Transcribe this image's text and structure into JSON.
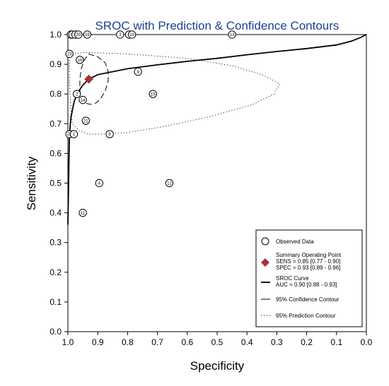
{
  "chart_data": {
    "type": "scatter",
    "title": "SROC with Prediction & Confidence Contours",
    "xlabel": "Specificity",
    "ylabel": "Sensitivity",
    "xlim": [
      1.0,
      0.0
    ],
    "ylim": [
      0.0,
      1.0
    ],
    "x_reversed": true,
    "grid": false,
    "x_ticks": [
      "1.0",
      "0.9",
      "0.8",
      "0.7",
      "0.6",
      "0.5",
      "0.4",
      "0.3",
      "0.2",
      "0.1",
      "0.0"
    ],
    "y_ticks": [
      "0.0",
      "0.1",
      "0.2",
      "0.3",
      "0.4",
      "0.5",
      "0.6",
      "0.7",
      "0.8",
      "0.9",
      "1.0"
    ],
    "studies": [
      {
        "label": "5",
        "specificity": 0.99,
        "sensitivity": 1.0
      },
      {
        "label": "6",
        "specificity": 0.985,
        "sensitivity": 1.0
      },
      {
        "label": "7",
        "specificity": 0.975,
        "sensitivity": 1.0
      },
      {
        "label": "20",
        "specificity": 0.965,
        "sensitivity": 1.0
      },
      {
        "label": "19",
        "specificity": 0.935,
        "sensitivity": 1.0
      },
      {
        "label": "3",
        "specificity": 0.825,
        "sensitivity": 1.0
      },
      {
        "label": "7",
        "specificity": 0.795,
        "sensitivity": 1.0
      },
      {
        "label": "10",
        "specificity": 0.785,
        "sensitivity": 1.0
      },
      {
        "label": "13",
        "specificity": 0.45,
        "sensitivity": 1.0
      },
      {
        "label": "23",
        "specificity": 0.995,
        "sensitivity": 0.935
      },
      {
        "label": "16",
        "specificity": 0.96,
        "sensitivity": 0.915
      },
      {
        "label": "9",
        "specificity": 0.765,
        "sensitivity": 0.875
      },
      {
        "label": "2",
        "specificity": 0.97,
        "sensitivity": 0.8
      },
      {
        "label": "15",
        "specificity": 0.715,
        "sensitivity": 0.8
      },
      {
        "label": "14",
        "specificity": 0.95,
        "sensitivity": 0.78
      },
      {
        "label": "21",
        "specificity": 0.94,
        "sensitivity": 0.71
      },
      {
        "label": "22",
        "specificity": 0.995,
        "sensitivity": 0.665
      },
      {
        "label": "1",
        "specificity": 0.98,
        "sensitivity": 0.665
      },
      {
        "label": "8",
        "specificity": 0.86,
        "sensitivity": 0.665
      },
      {
        "label": "4",
        "specificity": 0.895,
        "sensitivity": 0.5
      },
      {
        "label": "12",
        "specificity": 0.66,
        "sensitivity": 0.5
      },
      {
        "label": "11",
        "specificity": 0.95,
        "sensitivity": 0.4
      }
    ],
    "summary_point": {
      "specificity": 0.93,
      "sensitivity": 0.85,
      "color": "#a83232"
    },
    "sroc_curve": [
      [
        1.0,
        0.36
      ],
      [
        0.995,
        0.66
      ],
      [
        0.99,
        0.72
      ],
      [
        0.98,
        0.77
      ],
      [
        0.97,
        0.8
      ],
      [
        0.96,
        0.815
      ],
      [
        0.95,
        0.83
      ],
      [
        0.93,
        0.85
      ],
      [
        0.9,
        0.865
      ],
      [
        0.8,
        0.885
      ],
      [
        0.7,
        0.898
      ],
      [
        0.6,
        0.91
      ],
      [
        0.5,
        0.92
      ],
      [
        0.4,
        0.932
      ],
      [
        0.3,
        0.943
      ],
      [
        0.2,
        0.953
      ],
      [
        0.1,
        0.965
      ],
      [
        0.05,
        0.978
      ],
      [
        0.02,
        0.99
      ],
      [
        0.0,
        1.0
      ]
    ],
    "confidence_contour": [
      [
        0.93,
        0.935
      ],
      [
        0.9,
        0.925
      ],
      [
        0.875,
        0.905
      ],
      [
        0.865,
        0.875
      ],
      [
        0.865,
        0.845
      ],
      [
        0.875,
        0.81
      ],
      [
        0.89,
        0.785
      ],
      [
        0.905,
        0.77
      ],
      [
        0.925,
        0.765
      ],
      [
        0.945,
        0.77
      ],
      [
        0.955,
        0.785
      ],
      [
        0.96,
        0.81
      ],
      [
        0.96,
        0.85
      ],
      [
        0.955,
        0.885
      ],
      [
        0.945,
        0.915
      ],
      [
        0.93,
        0.935
      ]
    ],
    "prediction_contour": [
      [
        0.995,
        0.935
      ],
      [
        0.94,
        0.94
      ],
      [
        0.8,
        0.935
      ],
      [
        0.6,
        0.92
      ],
      [
        0.45,
        0.895
      ],
      [
        0.35,
        0.865
      ],
      [
        0.29,
        0.835
      ],
      [
        0.31,
        0.8
      ],
      [
        0.38,
        0.765
      ],
      [
        0.52,
        0.725
      ],
      [
        0.68,
        0.69
      ],
      [
        0.8,
        0.67
      ],
      [
        0.87,
        0.665
      ],
      [
        0.93,
        0.665
      ],
      [
        0.96,
        0.675
      ],
      [
        0.985,
        0.7
      ],
      [
        0.99,
        0.75
      ],
      [
        0.995,
        0.85
      ],
      [
        0.995,
        0.935
      ]
    ],
    "legend": {
      "position": "bottom-right",
      "observed": "Observed Data",
      "summary_title": "Summary Operating Point",
      "summary_sens": "SENS = 0.85 [0.77 - 0.90]",
      "summary_spec": "SPEC = 0.93 [0.89 - 0.96]",
      "sroc_title": "SROC Curve",
      "sroc_auc": "AUC = 0.90 [0.88 - 0.93]",
      "confidence": "95% Confidence Contour",
      "prediction": "95% Prediction Contour"
    }
  }
}
